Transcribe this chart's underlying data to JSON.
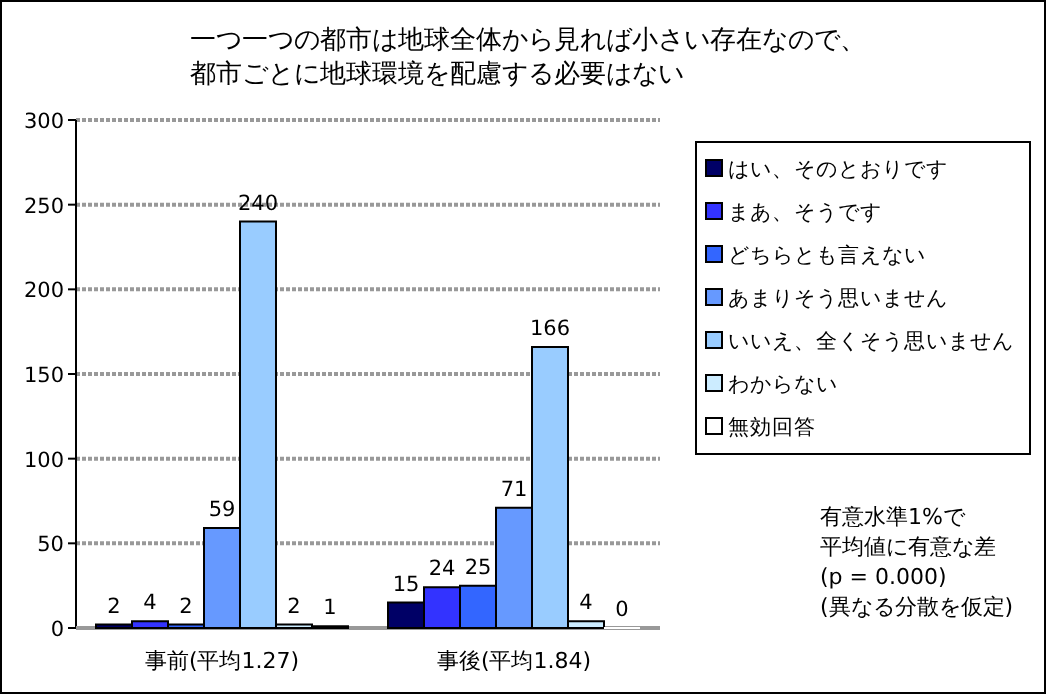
{
  "chart_data": {
    "type": "bar",
    "title": "一つ一つの都市は地球全体から見れば小さい存在なので、都市ごとに地球環境を配慮する必要はない",
    "categories": [
      "事前(平均1.27)",
      "事後(平均1.84)"
    ],
    "series": [
      {
        "name": "はい、そのとおりです",
        "color": "#000066",
        "values": [
          2,
          15
        ]
      },
      {
        "name": "まあ、そうです",
        "color": "#3333ff",
        "values": [
          4,
          24
        ]
      },
      {
        "name": "どちらとも言えない",
        "color": "#3366ff",
        "values": [
          2,
          25
        ]
      },
      {
        "name": "あまりそう思いません",
        "color": "#6699ff",
        "values": [
          59,
          71
        ]
      },
      {
        "name": "いいえ、全くそう思いません",
        "color": "#99ccff",
        "values": [
          240,
          166
        ]
      },
      {
        "name": "わからない",
        "color": "#ccecff",
        "values": [
          2,
          4
        ]
      },
      {
        "name": "無効回答",
        "color": "#ffffff",
        "values": [
          1,
          0
        ]
      }
    ],
    "ylim": [
      0,
      300
    ],
    "yticks": [
      0,
      50,
      100,
      150,
      200,
      250,
      300
    ],
    "grid": "y",
    "legend": "right",
    "data_labels": true,
    "annotations": [
      "有意水準1%で",
      "平均値に有意な差",
      "(p = 0.000)",
      "(異なる分散を仮定)"
    ]
  }
}
